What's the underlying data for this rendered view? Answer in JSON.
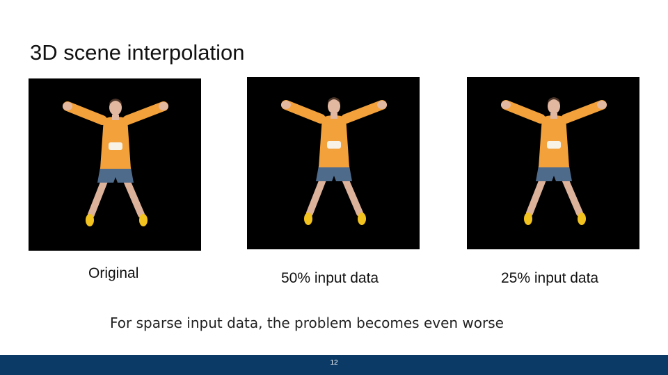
{
  "slide": {
    "title": "3D scene interpolation",
    "panels": [
      {
        "caption": "Original"
      },
      {
        "caption": "50% input data"
      },
      {
        "caption": "25% input data"
      }
    ],
    "note": "For sparse input data, the problem becomes even worse",
    "page_number": "12"
  },
  "colors": {
    "footer": "#0b3a66",
    "panel_background": "#000000",
    "sweater": "#f3a13b",
    "shorts": "#4f6b8c",
    "shoes": "#f2c21f"
  }
}
